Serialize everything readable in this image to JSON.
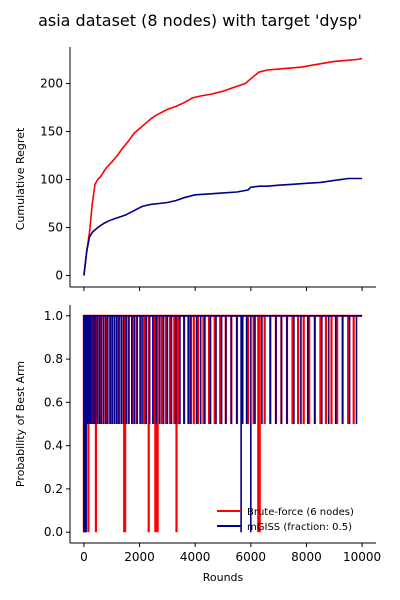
{
  "figure_title": "asia dataset (8 nodes) with target 'dysp'",
  "chart_data": [
    {
      "type": "line",
      "panel": "top",
      "title": "",
      "xlabel": "",
      "ylabel": "Cumulative Regret",
      "xlim": [
        -500,
        10500
      ],
      "ylim": [
        -12,
        238
      ],
      "xticks": [
        0,
        2000,
        4000,
        6000,
        8000,
        10000
      ],
      "yticks": [
        0,
        50,
        100,
        150,
        200
      ],
      "show_xtick_labels": false,
      "grid": false,
      "series": [
        {
          "name": "Brute-force (6 nodes)",
          "color": "#ff0000",
          "x": [
            0,
            100,
            200,
            300,
            400,
            500,
            600,
            800,
            1000,
            1200,
            1400,
            1600,
            1800,
            2000,
            2200,
            2400,
            2600,
            2800,
            3000,
            3300,
            3600,
            3900,
            4200,
            4600,
            5000,
            5400,
            5800,
            6000,
            6300,
            6600,
            7000,
            7400,
            7800,
            8200,
            8600,
            9000,
            9400,
            9800,
            10000
          ],
          "y": [
            0,
            25,
            45,
            75,
            95,
            100,
            103,
            112,
            118,
            125,
            133,
            140,
            148,
            153,
            158,
            163,
            167,
            170,
            173,
            176,
            180,
            185,
            187,
            189,
            192,
            196,
            200,
            205,
            212,
            214,
            215,
            216,
            217,
            219,
            221,
            223,
            224,
            225,
            226
          ]
        },
        {
          "name": "mGISS (fraction: 0.5)",
          "color": "#00008b",
          "x": [
            0,
            100,
            200,
            300,
            500,
            700,
            900,
            1100,
            1300,
            1500,
            1700,
            1900,
            2100,
            2400,
            2700,
            3000,
            3300,
            3600,
            4000,
            4500,
            5000,
            5500,
            5900,
            6000,
            6300,
            6600,
            7000,
            7500,
            8000,
            8500,
            9000,
            9500,
            10000
          ],
          "y": [
            0,
            25,
            40,
            45,
            50,
            54,
            57,
            59,
            61,
            63,
            66,
            69,
            72,
            74,
            75,
            76,
            78,
            81,
            84,
            85,
            86,
            87,
            89,
            92,
            93,
            93,
            94,
            95,
            96,
            97,
            99,
            101,
            101
          ]
        }
      ]
    },
    {
      "type": "line",
      "panel": "bottom",
      "title": "",
      "xlabel": "Rounds",
      "ylabel": "Probability of Best Arm",
      "xlim": [
        -500,
        10500
      ],
      "ylim": [
        -0.05,
        1.05
      ],
      "xticks": [
        0,
        2000,
        4000,
        6000,
        8000,
        10000
      ],
      "yticks": [
        0.0,
        0.2,
        0.4,
        0.6,
        0.8,
        1.0
      ],
      "grid": false,
      "legend": {
        "position": "lower-right",
        "entries": [
          "Brute-force (6 nodes)",
          "mGISS (fraction: 0.5)"
        ]
      },
      "series": [
        {
          "name": "Brute-force (6 nodes)",
          "color": "#ff0000",
          "mostly": 1.0,
          "drops_to_half": [
            120,
            220,
            300,
            380,
            460,
            560,
            700,
            820,
            950,
            1100,
            1250,
            1420,
            1600,
            1750,
            1900,
            2050,
            2200,
            2350,
            2500,
            2650,
            2800,
            2950,
            3100,
            3250,
            3400,
            3600,
            3800,
            3950,
            4100,
            4300,
            4500,
            4700,
            4900,
            5100,
            5300,
            5500,
            5700,
            5900,
            6100,
            6300,
            6500,
            6700,
            6900,
            7100,
            7300,
            7500,
            7700,
            7900,
            8100,
            8300,
            8500,
            8700,
            8900,
            9100,
            9300,
            9500,
            9700
          ],
          "drops_to_zero": [
            0,
            60,
            160,
            430,
            1450,
            1480,
            2330,
            2570,
            2650,
            3330,
            6270,
            6320
          ]
        },
        {
          "name": "mGISS (fraction: 0.5)",
          "color": "#00008b",
          "mostly": 1.0,
          "drops_to_half": [
            100,
            150,
            200,
            250,
            330,
            400,
            480,
            550,
            620,
            700,
            780,
            860,
            940,
            1020,
            1100,
            1180,
            1260,
            1340,
            1420,
            1520,
            1620,
            1720,
            1820,
            1920,
            2020,
            2120,
            2240,
            2360,
            2480,
            2600,
            2720,
            2860,
            3000,
            3150,
            3300,
            3450,
            3600,
            3750,
            3850,
            4050,
            4200,
            4350,
            4550,
            4750,
            4950,
            5100,
            5300,
            5500,
            5700,
            5850,
            6000,
            6150,
            6400,
            6700,
            6900,
            7100,
            7300,
            7550,
            7800,
            8050,
            8300,
            8550,
            8800,
            9050,
            9300,
            9550,
            9800
          ],
          "drops_to_zero": [
            0,
            40,
            80,
            5650,
            6000
          ]
        }
      ]
    }
  ]
}
